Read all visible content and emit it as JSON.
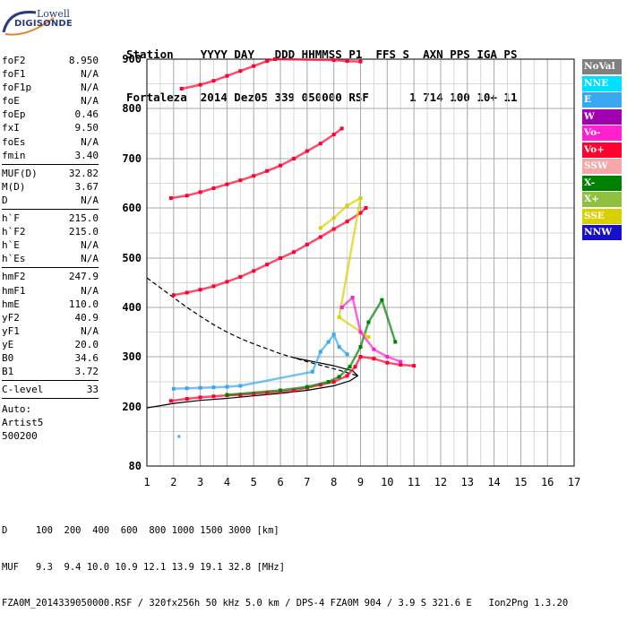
{
  "logo": {
    "line1": "Lowell",
    "line2": "DIGISONDE"
  },
  "header": {
    "line1": "Station    YYYY DAY   DDD HHMMSS P1  FFS S  AXN PPS IGA PS",
    "line2": "Fortaleza  2014 Dez05 339 050000 RSF      1 714 100 10+ 11"
  },
  "params": {
    "group1": [
      {
        "label": "foF2",
        "value": "8.950"
      },
      {
        "label": "foF1",
        "value": "N/A"
      },
      {
        "label": "foF1p",
        "value": "N/A"
      },
      {
        "label": "foE",
        "value": "N/A"
      },
      {
        "label": "foEp",
        "value": "0.46"
      },
      {
        "label": "fxI",
        "value": "9.50"
      },
      {
        "label": "foEs",
        "value": "N/A"
      },
      {
        "label": "fmin",
        "value": "3.40"
      }
    ],
    "group2": [
      {
        "label": "MUF(D)",
        "value": "32.82"
      },
      {
        "label": "M(D)",
        "value": "3.67"
      },
      {
        "label": "D",
        "value": "N/A"
      }
    ],
    "group3": [
      {
        "label": "h`F",
        "value": "215.0"
      },
      {
        "label": "h`F2",
        "value": "215.0"
      },
      {
        "label": "h`E",
        "value": "N/A"
      },
      {
        "label": "h`Es",
        "value": "N/A"
      }
    ],
    "group4": [
      {
        "label": "hmF2",
        "value": "247.9"
      },
      {
        "label": "hmF1",
        "value": "N/A"
      },
      {
        "label": "hmE",
        "value": "110.0"
      },
      {
        "label": "yF2",
        "value": "40.9"
      },
      {
        "label": "yF1",
        "value": "N/A"
      },
      {
        "label": "yE",
        "value": "20.0"
      },
      {
        "label": "B0",
        "value": "34.6"
      },
      {
        "label": "B1",
        "value": "3.72"
      }
    ],
    "group5": [
      {
        "label": "C-level",
        "value": "33"
      }
    ],
    "auto": [
      "Auto:",
      "Artist5",
      "500200"
    ]
  },
  "legend": [
    {
      "label": "NoVal",
      "color": "#808080"
    },
    {
      "label": "NNE",
      "color": "#00e0ff"
    },
    {
      "label": "E",
      "color": "#3aa8f0"
    },
    {
      "label": "W",
      "color": "#a000b0"
    },
    {
      "label": "Vo-",
      "color": "#ff20d0"
    },
    {
      "label": "Vo+",
      "color": "#ff0030"
    },
    {
      "label": "SSW",
      "color": "#f4a8a8"
    },
    {
      "label": "X-",
      "color": "#008000"
    },
    {
      "label": "X+",
      "color": "#90c040"
    },
    {
      "label": "SSE",
      "color": "#d8d000"
    },
    {
      "label": "NNW",
      "color": "#1810c8"
    }
  ],
  "footer": {
    "line1": "D     100  200  400  600  800 1000 1500 3000 [km]",
    "line2": "MUF   9.3  9.4 10.0 10.9 12.1 13.9 19.1 32.8 [MHz]",
    "line3": "FZA0M_2014339050000.RSF / 320fx256h 50 kHz 5.0 km / DPS-4 FZA0M 904 / 3.9 S 321.6 E   Ion2Png 1.3.20"
  },
  "chart_data": {
    "type": "scatter",
    "title": "",
    "xlabel": "",
    "ylabel": "",
    "xlim": [
      1,
      17
    ],
    "ylim": [
      80,
      900
    ],
    "xticks": [
      1,
      2,
      3,
      4,
      5,
      6,
      7,
      8,
      9,
      10,
      11,
      12,
      13,
      14,
      15,
      16,
      17
    ],
    "yticks": [
      80,
      200,
      300,
      400,
      500,
      600,
      700,
      800,
      900
    ],
    "grid": true,
    "legend_position": "right",
    "series": [
      {
        "color": "#ff0030",
        "points": [
          [
            1.9,
            212
          ],
          [
            2.5,
            216
          ],
          [
            3.0,
            219
          ],
          [
            3.5,
            221
          ],
          [
            4.0,
            223
          ],
          [
            4.5,
            224
          ],
          [
            5.0,
            226
          ],
          [
            5.5,
            228
          ],
          [
            6.0,
            230
          ],
          [
            6.5,
            233
          ],
          [
            7.0,
            238
          ],
          [
            7.5,
            244
          ],
          [
            8.0,
            250
          ],
          [
            8.5,
            262
          ],
          [
            8.8,
            280
          ],
          [
            9.0,
            300
          ],
          [
            9.5,
            296
          ],
          [
            10.0,
            288
          ],
          [
            10.5,
            284
          ],
          [
            11.0,
            282
          ]
        ]
      },
      {
        "color": "#3aa8f0",
        "points": [
          [
            2.0,
            236
          ],
          [
            2.5,
            237
          ],
          [
            3.0,
            238
          ],
          [
            3.5,
            239
          ],
          [
            4.0,
            240
          ],
          [
            4.5,
            242
          ],
          [
            7.2,
            270
          ],
          [
            7.5,
            310
          ],
          [
            7.8,
            330
          ],
          [
            8.0,
            345
          ],
          [
            8.2,
            320
          ],
          [
            8.5,
            305
          ]
        ]
      },
      {
        "color": "#ff0030",
        "points": [
          [
            2.0,
            425
          ],
          [
            2.5,
            430
          ],
          [
            3.0,
            436
          ],
          [
            3.5,
            443
          ],
          [
            4.0,
            452
          ],
          [
            4.5,
            462
          ],
          [
            5.0,
            474
          ],
          [
            5.5,
            487
          ],
          [
            6.0,
            500
          ],
          [
            6.5,
            512
          ],
          [
            7.0,
            527
          ],
          [
            7.5,
            542
          ],
          [
            8.0,
            558
          ],
          [
            8.5,
            573
          ],
          [
            9.0,
            590
          ],
          [
            9.2,
            600
          ]
        ]
      },
      {
        "color": "#ff0030",
        "points": [
          [
            1.9,
            620
          ],
          [
            2.5,
            625
          ],
          [
            3.0,
            632
          ],
          [
            3.5,
            640
          ],
          [
            4.0,
            648
          ],
          [
            4.5,
            656
          ],
          [
            5.0,
            665
          ],
          [
            5.5,
            675
          ],
          [
            6.0,
            686
          ],
          [
            6.5,
            700
          ],
          [
            7.0,
            715
          ],
          [
            7.5,
            730
          ],
          [
            8.0,
            748
          ],
          [
            8.3,
            760
          ]
        ]
      },
      {
        "color": "#ff0030",
        "points": [
          [
            2.3,
            840
          ],
          [
            3.0,
            848
          ],
          [
            3.5,
            856
          ],
          [
            4.0,
            866
          ],
          [
            4.5,
            876
          ],
          [
            5.0,
            886
          ],
          [
            5.5,
            896
          ],
          [
            5.8,
            900
          ],
          [
            8.0,
            898
          ],
          [
            8.5,
            896
          ],
          [
            9.0,
            895
          ]
        ]
      },
      {
        "color": "#008000",
        "points": [
          [
            4.0,
            224
          ],
          [
            6.0,
            233
          ],
          [
            7.0,
            240
          ],
          [
            7.8,
            250
          ],
          [
            8.2,
            260
          ],
          [
            8.6,
            280
          ],
          [
            9.0,
            320
          ],
          [
            9.3,
            370
          ],
          [
            9.8,
            415
          ],
          [
            10.3,
            330
          ]
        ]
      },
      {
        "color": "#d8d000",
        "points": [
          [
            7.5,
            560
          ],
          [
            8.0,
            580
          ],
          [
            8.5,
            605
          ],
          [
            9.0,
            620
          ],
          [
            8.2,
            380
          ],
          [
            9.3,
            340
          ]
        ]
      },
      {
        "color": "#ff20d0",
        "points": [
          [
            8.3,
            400
          ],
          [
            8.7,
            420
          ],
          [
            9.0,
            350
          ],
          [
            9.5,
            315
          ],
          [
            10.0,
            300
          ],
          [
            10.5,
            290
          ]
        ]
      }
    ],
    "reference_curves": [
      {
        "style": "solid",
        "color": "#000000",
        "points": [
          [
            1.0,
            198
          ],
          [
            2.0,
            207
          ],
          [
            3.0,
            213
          ],
          [
            4.0,
            217
          ],
          [
            5.0,
            222
          ],
          [
            6.0,
            227
          ],
          [
            7.0,
            233
          ],
          [
            8.0,
            242
          ],
          [
            8.6,
            252
          ],
          [
            8.9,
            262
          ],
          [
            8.7,
            272
          ],
          [
            8.0,
            282
          ],
          [
            6.5,
            298
          ]
        ]
      },
      {
        "style": "dashed",
        "color": "#000000",
        "points": [
          [
            1.0,
            460
          ],
          [
            1.5,
            440
          ],
          [
            2.0,
            420
          ],
          [
            2.5,
            400
          ],
          [
            3.0,
            382
          ],
          [
            3.5,
            365
          ],
          [
            4.0,
            350
          ],
          [
            4.5,
            337
          ],
          [
            5.0,
            326
          ],
          [
            6.0,
            306
          ],
          [
            7.0,
            290
          ],
          [
            8.0,
            276
          ],
          [
            8.9,
            262
          ]
        ]
      }
    ],
    "isolated_points": [
      [
        2.2,
        140
      ]
    ]
  }
}
